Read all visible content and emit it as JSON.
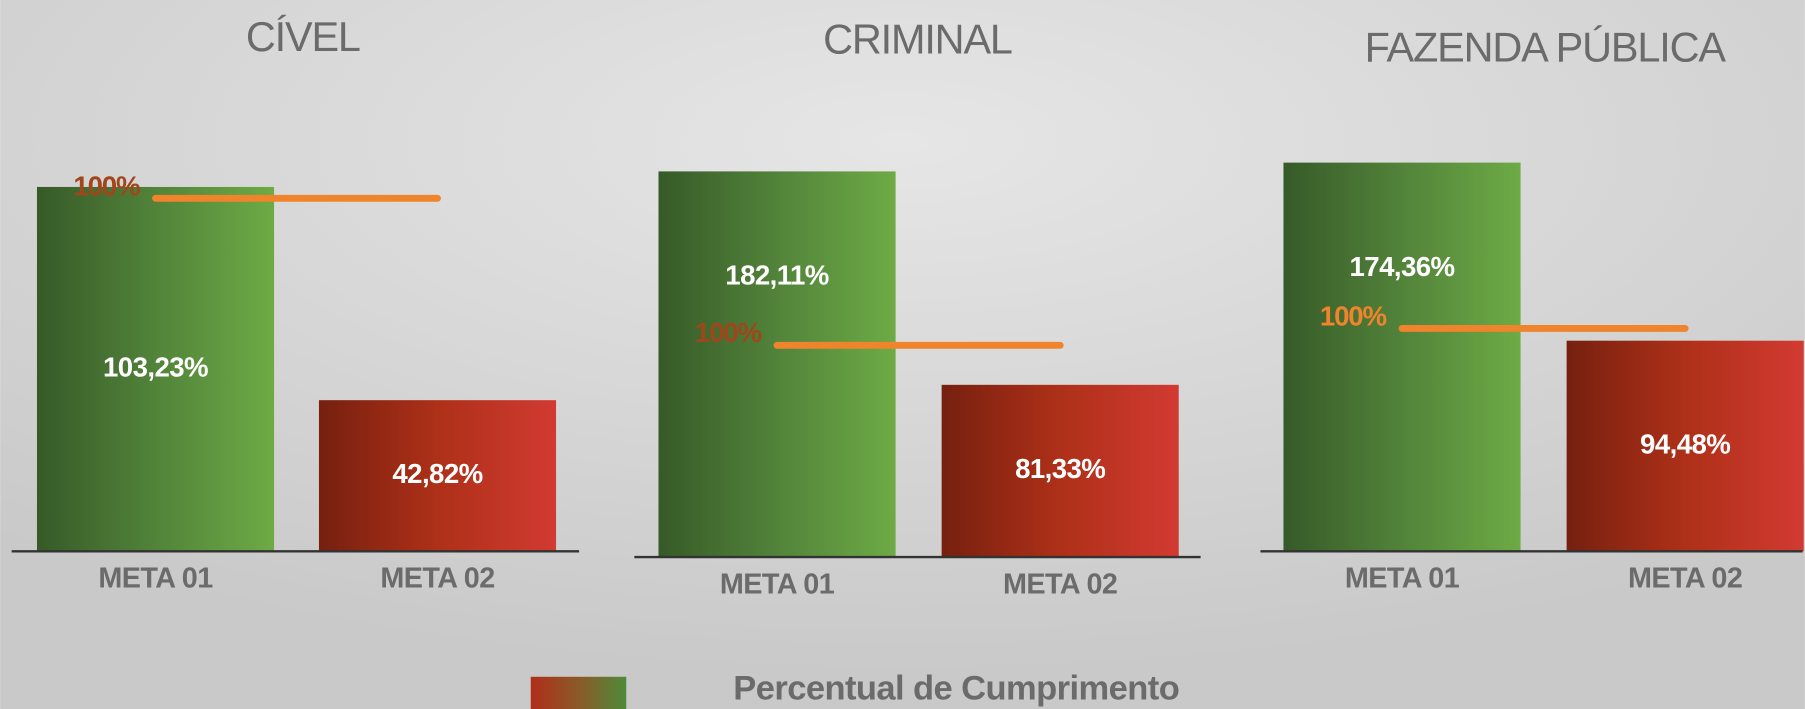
{
  "chart_data": [
    {
      "type": "bar",
      "title": "CÍVEL",
      "categories": [
        "META 01",
        "META 02"
      ],
      "values": [
        103.23,
        42.82
      ],
      "value_labels": [
        "103,23%",
        "42,82%"
      ],
      "colors": [
        "green",
        "red"
      ],
      "ylim": [
        0,
        120
      ],
      "reference": {
        "value": 100,
        "label": "100%"
      },
      "reference_color": "#f0842c",
      "reference_label_color": "#a0461a"
    },
    {
      "type": "bar",
      "title": "CRIMINAL",
      "categories": [
        "META 01",
        "META 02"
      ],
      "values": [
        182.11,
        81.33
      ],
      "value_labels": [
        "182,11%",
        "81,33%"
      ],
      "colors": [
        "green",
        "red"
      ],
      "ylim": [
        0,
        200
      ],
      "reference": {
        "value": 100,
        "label": "100%"
      },
      "reference_color": "#f0842c",
      "reference_label_color": "#a0461a"
    },
    {
      "type": "bar",
      "title": "FAZENDA PÚBLICA",
      "categories": [
        "META 01",
        "META 02"
      ],
      "values": [
        174.36,
        94.48
      ],
      "value_labels": [
        "174,36%",
        "94,48%"
      ],
      "colors": [
        "green",
        "red"
      ],
      "ylim": [
        0,
        190
      ],
      "reference": {
        "value": 100,
        "label": "100%"
      },
      "reference_color": "#f0842c",
      "reference_label_color": "#f0842c"
    }
  ],
  "legend_label": "Percentual de Cumprimento"
}
